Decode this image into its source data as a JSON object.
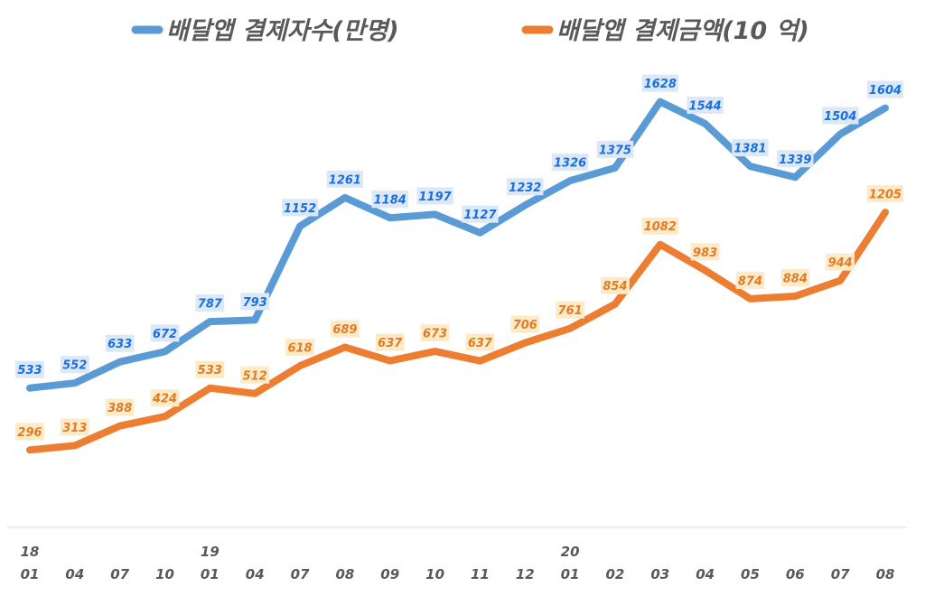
{
  "chart_data": {
    "type": "line",
    "title": "",
    "xlabel": "",
    "ylabel": "",
    "ylim": [
      0,
      2017
    ],
    "grid": false,
    "legend_position": "top",
    "x_year_labels": [
      "18",
      "",
      "",
      "",
      "19",
      "",
      "",
      "",
      "",
      "",
      "",
      "",
      "20",
      "",
      "",
      "",
      "",
      "",
      "",
      ""
    ],
    "x_month_labels": [
      "01",
      "04",
      "07",
      "10",
      "01",
      "04",
      "07",
      "08",
      "09",
      "10",
      "11",
      "12",
      "01",
      "02",
      "03",
      "04",
      "05",
      "06",
      "07",
      "08"
    ],
    "series": [
      {
        "name": "배달앱 결제자수(만명)",
        "color": "#5b9bd5",
        "label_color": "#1a6fe0",
        "label_bg": "#dce8f6",
        "values": [
          533,
          552,
          633,
          672,
          787,
          793,
          1152,
          1261,
          1184,
          1197,
          1127,
          1232,
          1326,
          1375,
          1628,
          1544,
          1381,
          1339,
          1504,
          1604
        ]
      },
      {
        "name": "배달앱 결제금액(10 억)",
        "color": "#ed7d31",
        "label_color": "#e07b28",
        "label_bg": "#fdebc8",
        "values": [
          296,
          313,
          388,
          424,
          533,
          512,
          618,
          689,
          637,
          673,
          637,
          706,
          761,
          854,
          1082,
          983,
          874,
          884,
          944,
          1205
        ]
      }
    ]
  }
}
